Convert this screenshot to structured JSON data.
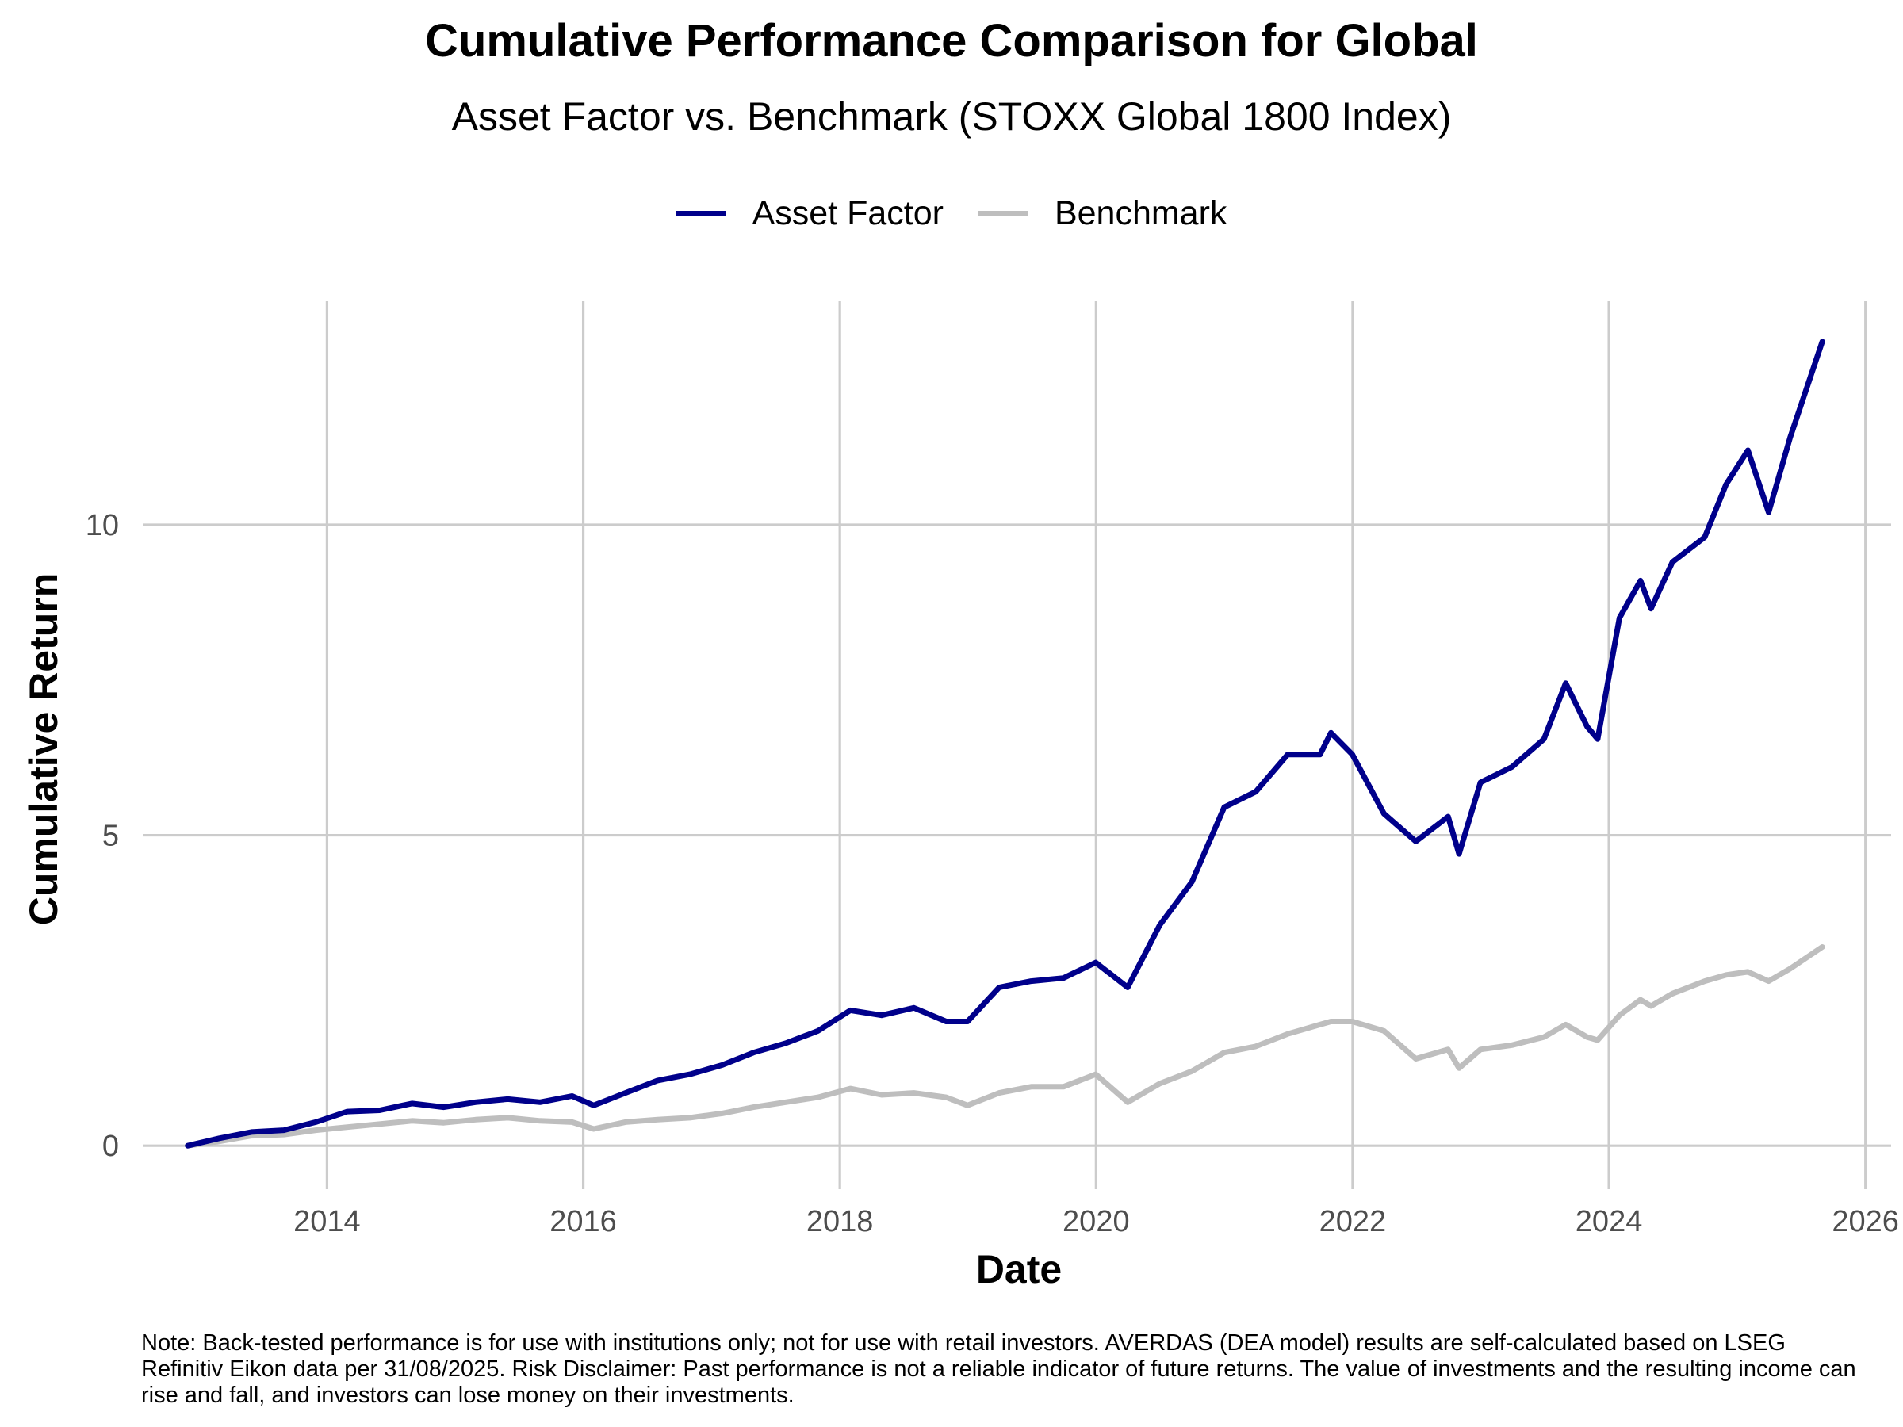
{
  "chart_data": {
    "type": "line",
    "title": "Cumulative Performance Comparison for Global",
    "subtitle": "Asset Factor vs. Benchmark (STOXX Global 1800 Index)",
    "xlabel": "Date",
    "ylabel": "Cumulative Return",
    "x_ticks": [
      "2014",
      "2016",
      "2018",
      "2020",
      "2022",
      "2024",
      "2026"
    ],
    "y_ticks": [
      0,
      5,
      10
    ],
    "xlim": [
      "2012-07-25",
      "2026-03-15"
    ],
    "ylim": [
      -0.7,
      13.6
    ],
    "grid": true,
    "legend_position": "top",
    "series": [
      {
        "name": "Asset Factor",
        "color": "#00008B",
        "points": [
          [
            "2012-11-30",
            0.0
          ],
          [
            "2013-02-28",
            0.12
          ],
          [
            "2013-05-31",
            0.22
          ],
          [
            "2013-08-31",
            0.25
          ],
          [
            "2013-11-30",
            0.38
          ],
          [
            "2014-02-28",
            0.55
          ],
          [
            "2014-05-31",
            0.57
          ],
          [
            "2014-08-31",
            0.68
          ],
          [
            "2014-11-30",
            0.62
          ],
          [
            "2015-02-28",
            0.7
          ],
          [
            "2015-05-31",
            0.75
          ],
          [
            "2015-08-31",
            0.7
          ],
          [
            "2015-11-30",
            0.8
          ],
          [
            "2016-01-31",
            0.65
          ],
          [
            "2016-04-30",
            0.85
          ],
          [
            "2016-07-31",
            1.05
          ],
          [
            "2016-10-31",
            1.15
          ],
          [
            "2017-01-31",
            1.3
          ],
          [
            "2017-04-30",
            1.5
          ],
          [
            "2017-07-31",
            1.65
          ],
          [
            "2017-10-31",
            1.85
          ],
          [
            "2018-01-31",
            2.18
          ],
          [
            "2018-04-30",
            2.1
          ],
          [
            "2018-07-31",
            2.22
          ],
          [
            "2018-10-31",
            2.0
          ],
          [
            "2018-12-31",
            2.0
          ],
          [
            "2019-03-31",
            2.55
          ],
          [
            "2019-06-30",
            2.65
          ],
          [
            "2019-09-30",
            2.7
          ],
          [
            "2019-12-31",
            2.95
          ],
          [
            "2020-03-31",
            2.55
          ],
          [
            "2020-06-30",
            3.55
          ],
          [
            "2020-09-30",
            4.25
          ],
          [
            "2020-12-31",
            5.45
          ],
          [
            "2021-03-31",
            5.7
          ],
          [
            "2021-06-30",
            6.3
          ],
          [
            "2021-09-30",
            6.3
          ],
          [
            "2021-10-31",
            6.65
          ],
          [
            "2021-12-31",
            6.3
          ],
          [
            "2022-03-31",
            5.35
          ],
          [
            "2022-06-30",
            4.9
          ],
          [
            "2022-09-30",
            5.3
          ],
          [
            "2022-10-31",
            4.7
          ],
          [
            "2022-12-31",
            5.85
          ],
          [
            "2023-03-31",
            6.1
          ],
          [
            "2023-06-30",
            6.55
          ],
          [
            "2023-08-31",
            7.45
          ],
          [
            "2023-10-31",
            6.75
          ],
          [
            "2023-11-30",
            6.55
          ],
          [
            "2024-01-31",
            8.5
          ],
          [
            "2024-03-31",
            9.1
          ],
          [
            "2024-04-30",
            8.65
          ],
          [
            "2024-06-30",
            9.4
          ],
          [
            "2024-09-30",
            9.8
          ],
          [
            "2024-11-30",
            10.65
          ],
          [
            "2025-01-31",
            11.2
          ],
          [
            "2025-03-31",
            10.2
          ],
          [
            "2025-05-31",
            11.4
          ],
          [
            "2025-08-31",
            12.95
          ]
        ]
      },
      {
        "name": "Benchmark",
        "color": "#BEBEBE",
        "points": [
          [
            "2012-11-30",
            0.0
          ],
          [
            "2013-02-28",
            0.07
          ],
          [
            "2013-05-31",
            0.16
          ],
          [
            "2013-08-31",
            0.18
          ],
          [
            "2013-11-30",
            0.25
          ],
          [
            "2014-02-28",
            0.3
          ],
          [
            "2014-05-31",
            0.35
          ],
          [
            "2014-08-31",
            0.4
          ],
          [
            "2014-11-30",
            0.37
          ],
          [
            "2015-02-28",
            0.42
          ],
          [
            "2015-05-31",
            0.45
          ],
          [
            "2015-08-31",
            0.4
          ],
          [
            "2015-11-30",
            0.38
          ],
          [
            "2016-01-31",
            0.27
          ],
          [
            "2016-04-30",
            0.38
          ],
          [
            "2016-07-31",
            0.42
          ],
          [
            "2016-10-31",
            0.45
          ],
          [
            "2017-01-31",
            0.52
          ],
          [
            "2017-04-30",
            0.62
          ],
          [
            "2017-07-31",
            0.7
          ],
          [
            "2017-10-31",
            0.78
          ],
          [
            "2018-01-31",
            0.92
          ],
          [
            "2018-04-30",
            0.82
          ],
          [
            "2018-07-31",
            0.85
          ],
          [
            "2018-10-31",
            0.78
          ],
          [
            "2018-12-31",
            0.65
          ],
          [
            "2019-03-31",
            0.85
          ],
          [
            "2019-06-30",
            0.95
          ],
          [
            "2019-09-30",
            0.95
          ],
          [
            "2019-12-31",
            1.15
          ],
          [
            "2020-03-31",
            0.7
          ],
          [
            "2020-06-30",
            1.0
          ],
          [
            "2020-09-30",
            1.2
          ],
          [
            "2020-12-31",
            1.5
          ],
          [
            "2021-03-31",
            1.6
          ],
          [
            "2021-06-30",
            1.8
          ],
          [
            "2021-09-30",
            1.95
          ],
          [
            "2021-10-31",
            2.0
          ],
          [
            "2021-12-31",
            2.0
          ],
          [
            "2022-03-31",
            1.85
          ],
          [
            "2022-06-30",
            1.4
          ],
          [
            "2022-09-30",
            1.55
          ],
          [
            "2022-10-31",
            1.25
          ],
          [
            "2022-12-31",
            1.55
          ],
          [
            "2023-03-31",
            1.62
          ],
          [
            "2023-06-30",
            1.75
          ],
          [
            "2023-08-31",
            1.95
          ],
          [
            "2023-10-31",
            1.75
          ],
          [
            "2023-11-30",
            1.7
          ],
          [
            "2024-01-31",
            2.1
          ],
          [
            "2024-03-31",
            2.35
          ],
          [
            "2024-04-30",
            2.25
          ],
          [
            "2024-06-30",
            2.45
          ],
          [
            "2024-09-30",
            2.65
          ],
          [
            "2024-11-30",
            2.75
          ],
          [
            "2025-01-31",
            2.8
          ],
          [
            "2025-03-31",
            2.65
          ],
          [
            "2025-05-31",
            2.85
          ],
          [
            "2025-08-31",
            3.2
          ]
        ]
      }
    ]
  },
  "note": "Note: Back-tested performance is for use with institutions only; not for use with retail investors. AVERDAS (DEA model) results are self-calculated based on LSEG Refinitiv Eikon data per 31/08/2025. Risk Disclaimer: Past performance is not a reliable indicator of future returns. The value of investments and the resulting income can rise and fall, and investors can lose money on their investments."
}
